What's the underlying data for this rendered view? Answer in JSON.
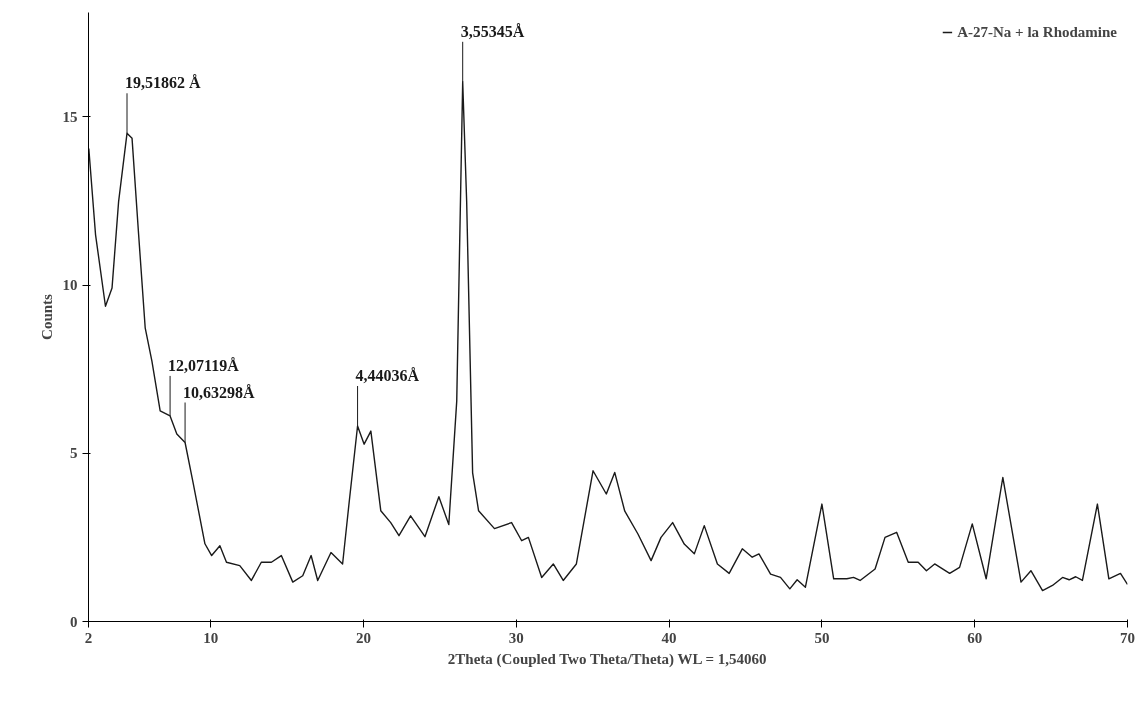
{
  "chart_data": {
    "type": "line",
    "xlabel": "2Theta (Coupled Two Theta/Theta) WL = 1,54060",
    "ylabel": "Counts",
    "xlim": [
      2,
      70
    ],
    "ylim": [
      0,
      18.1
    ],
    "xticks": [
      2,
      10,
      20,
      30,
      40,
      50,
      60,
      70
    ],
    "yticks": [
      0,
      5,
      10,
      15
    ],
    "grid": false,
    "legend": "top right",
    "marker": "none",
    "line_style": "solid",
    "series": [
      {
        "name": "A-27-Na + la Rhodamine",
        "color": "#1a1a1a",
        "x": [
          2.02,
          2.46,
          3.11,
          3.54,
          3.97,
          4.52,
          4.85,
          5.28,
          5.71,
          6.15,
          6.69,
          7.34,
          7.78,
          8.32,
          8.86,
          9.62,
          10.06,
          10.6,
          11.03,
          11.9,
          12.66,
          13.31,
          13.97,
          14.62,
          15.37,
          16.02,
          16.57,
          17.0,
          17.87,
          18.63,
          19.07,
          19.61,
          20.04,
          20.48,
          21.13,
          21.78,
          22.32,
          23.08,
          24.02,
          24.93,
          25.58,
          26.1,
          26.49,
          26.75,
          27.14,
          27.53,
          28.57,
          29.69,
          30.35,
          30.79,
          31.66,
          32.42,
          33.07,
          33.93,
          35.02,
          35.89,
          36.44,
          37.09,
          37.96,
          38.82,
          39.47,
          40.23,
          40.99,
          41.65,
          42.3,
          43.16,
          43.93,
          44.79,
          45.44,
          45.88,
          46.64,
          47.29,
          47.9,
          48.38,
          48.92,
          50.0,
          50.77,
          51.63,
          52.07,
          52.5,
          53.48,
          54.13,
          54.89,
          55.65,
          56.3,
          56.84,
          57.38,
          58.36,
          59.01,
          59.84,
          60.75,
          61.84,
          63.03,
          63.68,
          64.44,
          65.09,
          65.75,
          66.18,
          66.61,
          67.05,
          68.03,
          68.78,
          69.54,
          70.0
        ],
        "values": [
          14.06,
          11.5,
          9.37,
          9.91,
          12.48,
          14.51,
          14.36,
          11.5,
          8.73,
          7.74,
          6.26,
          6.11,
          5.57,
          5.32,
          4.09,
          2.31,
          1.96,
          2.25,
          1.76,
          1.66,
          1.22,
          1.76,
          1.76,
          1.96,
          1.17,
          1.36,
          1.96,
          1.22,
          2.05,
          1.71,
          3.59,
          5.81,
          5.27,
          5.66,
          3.29,
          2.94,
          2.55,
          3.14,
          2.52,
          3.71,
          2.88,
          6.55,
          16.04,
          12.48,
          4.42,
          3.29,
          2.76,
          2.94,
          2.4,
          2.5,
          1.31,
          1.71,
          1.22,
          1.71,
          4.48,
          3.79,
          4.43,
          3.29,
          2.6,
          1.81,
          2.5,
          2.94,
          2.3,
          2.01,
          2.85,
          1.71,
          1.43,
          2.16,
          1.91,
          2.01,
          1.41,
          1.31,
          0.97,
          1.24,
          1.02,
          3.49,
          1.27,
          1.27,
          1.31,
          1.22,
          1.56,
          2.5,
          2.65,
          1.76,
          1.76,
          1.51,
          1.71,
          1.43,
          1.61,
          2.9,
          1.27,
          4.28,
          1.17,
          1.51,
          0.92,
          1.07,
          1.31,
          1.24,
          1.33,
          1.22,
          3.49,
          1.27,
          1.43,
          1.1
        ]
      }
    ],
    "annotations": [
      {
        "text": "19,51862 Å",
        "x": 4.52,
        "y": 14.51
      },
      {
        "text": "12,07119Å",
        "x": 7.34,
        "y": 6.11
      },
      {
        "text": "10,63298Å",
        "x": 8.32,
        "y": 5.32
      },
      {
        "text": "4,44036Å",
        "x": 19.61,
        "y": 5.81
      },
      {
        "text": "3,55345Å",
        "x": 26.49,
        "y": 16.04
      }
    ]
  }
}
